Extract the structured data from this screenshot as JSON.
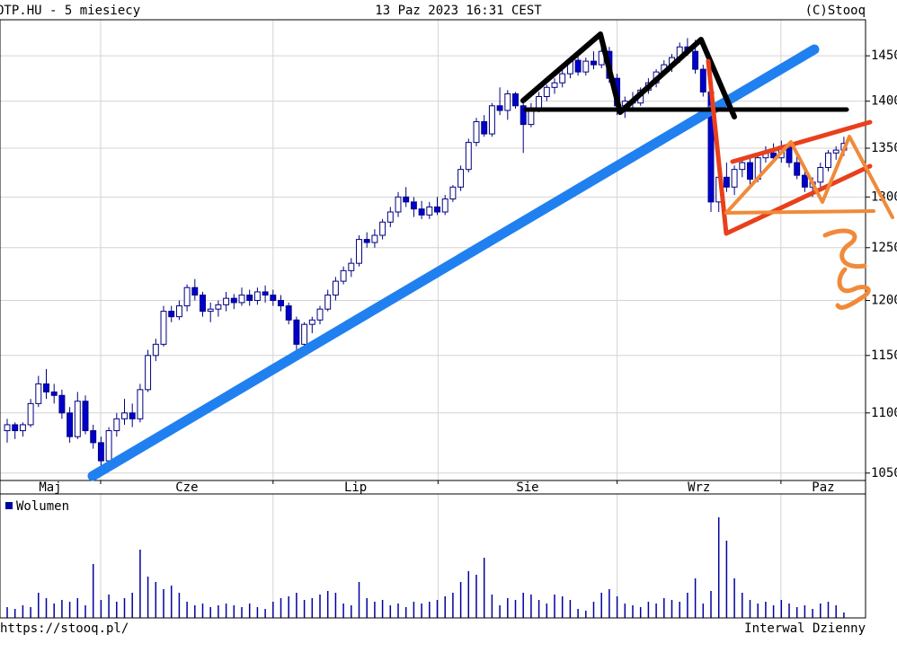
{
  "chart_data": [
    {
      "type": "candlestick",
      "title": "OTP.HU - 5 miesiecy",
      "subtitle": "13 Paz 2023 16:31 CEST",
      "source": "(C)Stooq",
      "footer_left": "https://stooq.pl/",
      "footer_right": "Interwal Dzienny",
      "log": true,
      "ylim": [
        1044,
        1491
      ],
      "yticks": [
        1050,
        1100,
        1150,
        1200,
        1250,
        1300,
        1350,
        1400,
        1450
      ],
      "xlim": [
        -0.92,
        109.77
      ],
      "xgrid": [
        11.95,
        34,
        55.1,
        78,
        98.95
      ],
      "months": [
        "Maj",
        "Cze",
        "Lip",
        "Sie",
        "Wrz",
        "Paz"
      ],
      "grid": true,
      "up_color": "#ffffff",
      "down_color": "#0000cc",
      "edge_color": "#000080",
      "open": [
        1085,
        1090,
        1085,
        1090,
        1108,
        1125,
        1118,
        1115,
        1100,
        1080,
        1110,
        1085,
        1075,
        1060,
        1085,
        1095,
        1100,
        1095,
        1120,
        1150,
        1160,
        1190,
        1185,
        1195,
        1212,
        1205,
        1190,
        1192,
        1196,
        1202,
        1198,
        1205,
        1200,
        1208,
        1205,
        1200,
        1195,
        1182,
        1160,
        1178,
        1182,
        1192,
        1205,
        1218,
        1228,
        1235,
        1258,
        1255,
        1262,
        1275,
        1285,
        1300,
        1295,
        1288,
        1282,
        1290,
        1285,
        1298,
        1310,
        1328,
        1356,
        1378,
        1365,
        1395,
        1390,
        1408,
        1395,
        1375,
        1392,
        1405,
        1415,
        1420,
        1430,
        1445,
        1432,
        1444,
        1440,
        1455,
        1425,
        1395,
        1400,
        1398,
        1412,
        1420,
        1432,
        1440,
        1448,
        1460,
        1455,
        1435,
        1410,
        1295,
        1320,
        1310,
        1328,
        1335,
        1318,
        1340,
        1345,
        1340,
        1352,
        1335,
        1322,
        1310,
        1315,
        1330,
        1345,
        1348
      ],
      "high": [
        1095,
        1092,
        1092,
        1112,
        1132,
        1138,
        1125,
        1120,
        1105,
        1118,
        1115,
        1090,
        1080,
        1088,
        1100,
        1112,
        1108,
        1125,
        1155,
        1165,
        1195,
        1195,
        1200,
        1215,
        1220,
        1208,
        1198,
        1200,
        1208,
        1206,
        1212,
        1210,
        1212,
        1214,
        1210,
        1205,
        1198,
        1185,
        1180,
        1185,
        1195,
        1210,
        1222,
        1232,
        1240,
        1262,
        1265,
        1268,
        1278,
        1290,
        1305,
        1310,
        1300,
        1296,
        1295,
        1300,
        1302,
        1312,
        1332,
        1360,
        1382,
        1385,
        1398,
        1415,
        1412,
        1410,
        1398,
        1398,
        1410,
        1418,
        1425,
        1435,
        1448,
        1450,
        1448,
        1455,
        1462,
        1460,
        1430,
        1405,
        1410,
        1415,
        1425,
        1435,
        1445,
        1452,
        1465,
        1470,
        1468,
        1440,
        1415,
        1325,
        1335,
        1332,
        1340,
        1342,
        1345,
        1352,
        1355,
        1358,
        1356,
        1345,
        1330,
        1320,
        1335,
        1348,
        1352,
        1362
      ],
      "low": [
        1075,
        1078,
        1080,
        1088,
        1105,
        1112,
        1108,
        1095,
        1075,
        1078,
        1082,
        1070,
        1055,
        1058,
        1080,
        1090,
        1088,
        1092,
        1118,
        1145,
        1158,
        1180,
        1182,
        1190,
        1200,
        1185,
        1180,
        1185,
        1190,
        1192,
        1195,
        1195,
        1196,
        1198,
        1195,
        1190,
        1178,
        1155,
        1158,
        1170,
        1178,
        1190,
        1200,
        1215,
        1222,
        1232,
        1250,
        1250,
        1258,
        1270,
        1280,
        1290,
        1280,
        1278,
        1278,
        1282,
        1282,
        1295,
        1306,
        1325,
        1352,
        1362,
        1362,
        1385,
        1380,
        1392,
        1345,
        1372,
        1388,
        1400,
        1408,
        1415,
        1425,
        1428,
        1428,
        1435,
        1436,
        1420,
        1385,
        1382,
        1392,
        1395,
        1408,
        1415,
        1428,
        1432,
        1442,
        1450,
        1430,
        1405,
        1285,
        1285,
        1305,
        1302,
        1320,
        1312,
        1315,
        1335,
        1335,
        1335,
        1330,
        1318,
        1305,
        1300,
        1310,
        1326,
        1338,
        1342
      ],
      "close": [
        1090,
        1085,
        1090,
        1108,
        1125,
        1118,
        1115,
        1100,
        1080,
        1110,
        1085,
        1075,
        1060,
        1085,
        1095,
        1100,
        1095,
        1120,
        1150,
        1160,
        1190,
        1185,
        1195,
        1212,
        1205,
        1190,
        1192,
        1196,
        1202,
        1198,
        1205,
        1200,
        1208,
        1205,
        1200,
        1195,
        1182,
        1160,
        1178,
        1182,
        1192,
        1205,
        1218,
        1228,
        1235,
        1258,
        1255,
        1262,
        1275,
        1285,
        1300,
        1295,
        1288,
        1282,
        1290,
        1285,
        1298,
        1310,
        1328,
        1356,
        1378,
        1365,
        1395,
        1390,
        1408,
        1395,
        1375,
        1392,
        1405,
        1415,
        1420,
        1430,
        1445,
        1432,
        1444,
        1440,
        1455,
        1425,
        1395,
        1400,
        1398,
        1412,
        1420,
        1432,
        1440,
        1448,
        1460,
        1455,
        1435,
        1410,
        1295,
        1320,
        1310,
        1328,
        1335,
        1318,
        1340,
        1345,
        1340,
        1352,
        1335,
        1322,
        1310,
        1315,
        1330,
        1345,
        1348,
        1355
      ]
    },
    {
      "type": "bar",
      "ylim": [
        0,
        136
      ],
      "series": [
        {
          "name": "Wolumen",
          "color": "#0000a0",
          "values": [
            12,
            10,
            14,
            12,
            28,
            22,
            16,
            20,
            18,
            22,
            14,
            60,
            20,
            26,
            18,
            22,
            28,
            76,
            46,
            40,
            32,
            36,
            28,
            18,
            14,
            16,
            12,
            14,
            16,
            14,
            12,
            16,
            12,
            10,
            18,
            22,
            24,
            28,
            20,
            22,
            26,
            30,
            28,
            16,
            14,
            40,
            22,
            18,
            20,
            14,
            16,
            12,
            18,
            16,
            18,
            20,
            24,
            28,
            40,
            52,
            48,
            67,
            26,
            14,
            22,
            20,
            28,
            26,
            20,
            16,
            26,
            24,
            20,
            10,
            8,
            18,
            28,
            32,
            24,
            16,
            14,
            12,
            18,
            16,
            22,
            20,
            18,
            28,
            44,
            16,
            30,
            112,
            86,
            44,
            28,
            20,
            16,
            18,
            14,
            20,
            16,
            12,
            14,
            10,
            16,
            18,
            14,
            6
          ]
        }
      ]
    }
  ]
}
